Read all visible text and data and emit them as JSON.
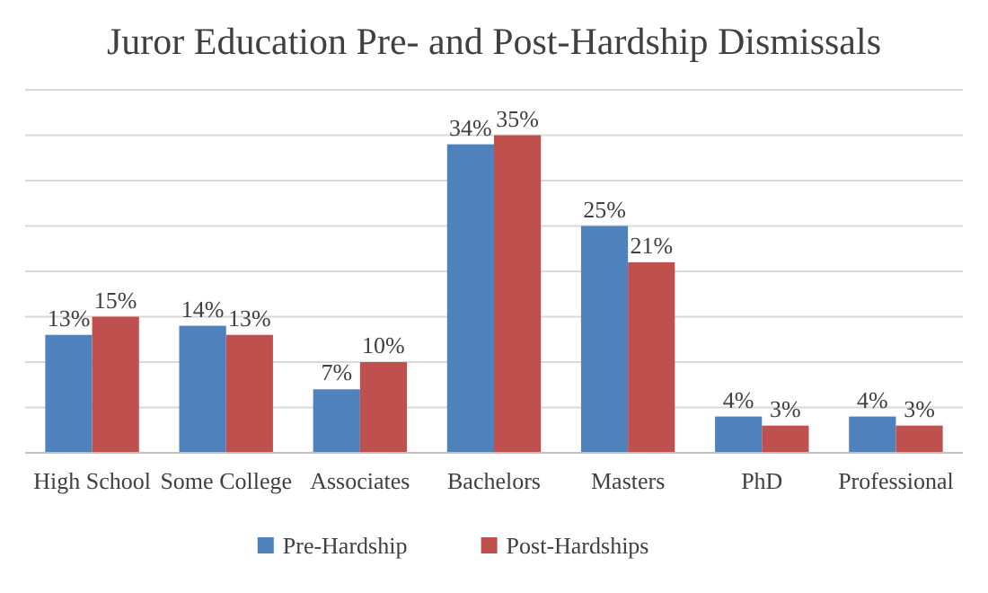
{
  "chart_data": {
    "type": "bar",
    "title": "Juror Education Pre- and Post-Hardship Dismissals",
    "categories": [
      "High School",
      "Some College",
      "Associates",
      "Bachelors",
      "Masters",
      "PhD",
      "Professional"
    ],
    "series": [
      {
        "name": "Pre-Hardship",
        "color": "#4f81bd",
        "values": [
          13,
          14,
          7,
          34,
          25,
          4,
          4
        ],
        "value_labels": [
          "13%",
          "14%",
          "7%",
          "34%",
          "25%",
          "4%",
          "4%"
        ]
      },
      {
        "name": "Post-Hardships",
        "color": "#c0504d",
        "values": [
          15,
          13,
          10,
          35,
          21,
          3,
          3
        ],
        "value_labels": [
          "15%",
          "13%",
          "10%",
          "35%",
          "21%",
          "3%",
          "3%"
        ]
      }
    ],
    "ylim": [
      0,
      40
    ],
    "yticks": [
      {
        "value": 0,
        "label": null
      },
      {
        "value": 5,
        "label": null
      },
      {
        "value": 10,
        "label": null
      },
      {
        "value": 15,
        "label": null
      },
      {
        "value": 20,
        "label": null
      },
      {
        "value": 25,
        "label": null
      },
      {
        "value": 30,
        "label": null
      },
      {
        "value": 35,
        "label": null
      },
      {
        "value": 40,
        "label": null
      }
    ],
    "grid": "y",
    "legend": "bottom",
    "tick_labels": "x"
  }
}
